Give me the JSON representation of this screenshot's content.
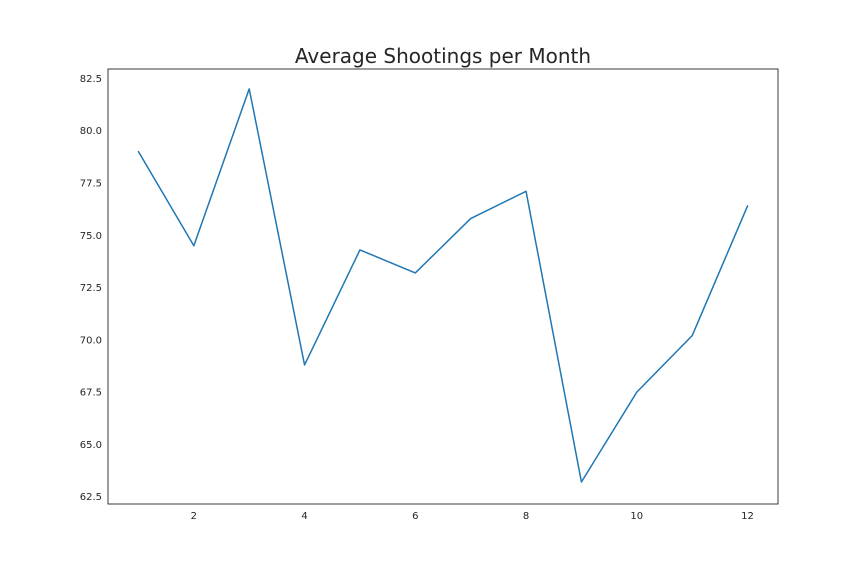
{
  "chart_data": {
    "type": "line",
    "title": "Average Shootings per Month",
    "xlabel": "",
    "ylabel": "",
    "x": [
      1,
      2,
      3,
      4,
      5,
      6,
      7,
      8,
      9,
      10,
      11,
      12
    ],
    "series": [
      {
        "values": [
          79.0,
          74.5,
          82.0,
          68.8,
          74.3,
          73.2,
          75.8,
          77.1,
          63.2,
          67.5,
          70.2,
          76.4
        ]
      }
    ],
    "xticks": [
      2,
      4,
      6,
      8,
      10,
      12
    ],
    "xtick_labels": [
      "2",
      "4",
      "6",
      "8",
      "10",
      "12"
    ],
    "yticks": [
      62.5,
      65.0,
      67.5,
      70.0,
      72.5,
      75.0,
      77.5,
      80.0,
      82.5
    ],
    "ytick_labels": [
      "62.5",
      "65.0",
      "67.5",
      "70.0",
      "72.5",
      "75.0",
      "77.5",
      "80.0",
      "82.5"
    ],
    "xlim": [
      0.45,
      12.55
    ],
    "ylim": [
      62.15,
      82.95
    ],
    "grid": false,
    "legend": "none",
    "colors": {
      "line": "#1f77b4",
      "axis": "#262626",
      "text": "#262626",
      "background": "#ffffff"
    }
  }
}
